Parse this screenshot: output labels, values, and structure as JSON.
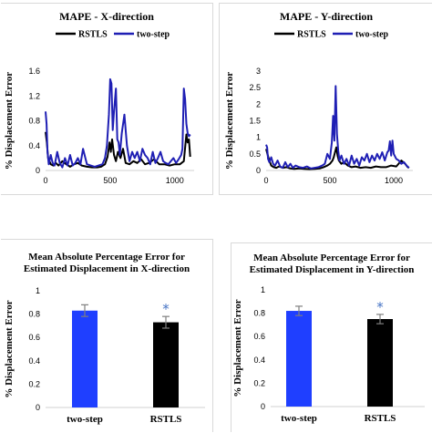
{
  "chart_data": [
    {
      "type": "line",
      "title": "MAPE - X-direction",
      "ylabel": "% Displacement Error",
      "xlabel": "",
      "xlim": [
        0,
        1150
      ],
      "ylim": [
        0,
        1.6
      ],
      "yticks": [
        "0",
        "0.4",
        "0.8",
        "1.2",
        "1.6"
      ],
      "xticks": [
        "0",
        "500",
        "1000"
      ],
      "legend_position": "top",
      "series": [
        {
          "name": "RSTLS",
          "color": "#000000",
          "x": [
            0,
            10,
            20,
            40,
            60,
            80,
            100,
            130,
            160,
            190,
            220,
            250,
            280,
            320,
            360,
            400,
            430,
            460,
            480,
            495,
            505,
            515,
            530,
            545,
            560,
            580,
            600,
            620,
            650,
            680,
            710,
            740,
            770,
            800,
            840,
            880,
            920,
            960,
            1000,
            1040,
            1070,
            1090,
            1100,
            1110,
            1120
          ],
          "y": [
            0.62,
            0.45,
            0.2,
            0.1,
            0.08,
            0.12,
            0.08,
            0.15,
            0.1,
            0.06,
            0.1,
            0.12,
            0.08,
            0.06,
            0.05,
            0.05,
            0.06,
            0.1,
            0.22,
            0.45,
            0.3,
            0.5,
            0.25,
            0.15,
            0.3,
            0.2,
            0.35,
            0.12,
            0.1,
            0.15,
            0.12,
            0.18,
            0.1,
            0.12,
            0.18,
            0.1,
            0.1,
            0.08,
            0.1,
            0.1,
            0.15,
            0.58,
            0.45,
            0.5,
            0.22
          ]
        },
        {
          "name": "two-step",
          "color": "#1f1fb4",
          "x": [
            0,
            8,
            15,
            25,
            40,
            55,
            70,
            90,
            110,
            130,
            150,
            170,
            190,
            210,
            230,
            250,
            270,
            290,
            320,
            350,
            380,
            410,
            440,
            460,
            475,
            490,
            500,
            510,
            520,
            530,
            545,
            555,
            565,
            575,
            590,
            610,
            630,
            650,
            670,
            690,
            710,
            730,
            750,
            770,
            790,
            810,
            830,
            850,
            870,
            890,
            910,
            930,
            950,
            970,
            990,
            1010,
            1030,
            1050,
            1060,
            1070,
            1080,
            1090,
            1100,
            1110,
            1120
          ],
          "y": [
            0.95,
            0.75,
            0.3,
            0.1,
            0.25,
            0.12,
            0.08,
            0.3,
            0.12,
            0.05,
            0.2,
            0.08,
            0.25,
            0.08,
            0.12,
            0.2,
            0.1,
            0.35,
            0.1,
            0.08,
            0.06,
            0.08,
            0.1,
            0.2,
            0.4,
            0.9,
            1.47,
            1.4,
            0.65,
            0.95,
            1.32,
            0.5,
            0.45,
            0.25,
            0.6,
            0.9,
            0.4,
            0.15,
            0.3,
            0.2,
            0.3,
            0.15,
            0.35,
            0.25,
            0.2,
            0.1,
            0.3,
            0.12,
            0.2,
            0.3,
            0.15,
            0.12,
            0.1,
            0.15,
            0.2,
            0.12,
            0.18,
            0.25,
            0.35,
            1.32,
            1.15,
            0.75,
            0.6,
            0.55,
            0.58
          ]
        }
      ]
    },
    {
      "type": "line",
      "title": "MAPE - Y-direction",
      "ylabel": "% Displacement Error",
      "xlabel": "",
      "xlim": [
        0,
        1150
      ],
      "ylim": [
        0,
        3
      ],
      "yticks": [
        "0",
        "0.5",
        "1",
        "1.5",
        "2",
        "2.5",
        "3"
      ],
      "xticks": [
        "0",
        "500",
        "1000"
      ],
      "legend_position": "top",
      "series": [
        {
          "name": "RSTLS",
          "color": "#000000",
          "x": [
            0,
            10,
            25,
            40,
            60,
            80,
            100,
            130,
            160,
            190,
            220,
            260,
            300,
            340,
            380,
            420,
            450,
            480,
            500,
            520,
            530,
            540,
            550,
            560,
            570,
            590,
            610,
            640,
            670,
            700,
            740,
            780,
            820,
            860,
            900,
            940,
            980,
            1020,
            1060,
            1090,
            1110,
            1120
          ],
          "y": [
            0.65,
            0.5,
            0.3,
            0.15,
            0.1,
            0.08,
            0.12,
            0.08,
            0.1,
            0.06,
            0.05,
            0.06,
            0.05,
            0.04,
            0.05,
            0.06,
            0.1,
            0.15,
            0.2,
            0.3,
            0.4,
            0.55,
            0.7,
            0.45,
            0.3,
            0.2,
            0.25,
            0.15,
            0.1,
            0.12,
            0.08,
            0.1,
            0.08,
            0.12,
            0.1,
            0.1,
            0.15,
            0.12,
            0.3,
            0.2,
            0.1,
            0.08
          ]
        },
        {
          "name": "two-step",
          "color": "#1f1fb4",
          "x": [
            0,
            8,
            15,
            25,
            40,
            55,
            70,
            90,
            110,
            130,
            150,
            170,
            190,
            210,
            230,
            260,
            290,
            320,
            350,
            380,
            410,
            440,
            460,
            480,
            500,
            515,
            525,
            535,
            545,
            555,
            565,
            575,
            590,
            610,
            630,
            650,
            670,
            690,
            710,
            730,
            750,
            770,
            790,
            810,
            830,
            850,
            870,
            890,
            910,
            930,
            950,
            960,
            970,
            980,
            990,
            1000,
            1020,
            1040,
            1060,
            1080,
            1100,
            1120
          ],
          "y": [
            0.78,
            0.7,
            0.35,
            0.25,
            0.4,
            0.2,
            0.15,
            0.3,
            0.12,
            0.08,
            0.25,
            0.1,
            0.2,
            0.08,
            0.15,
            0.1,
            0.08,
            0.12,
            0.06,
            0.08,
            0.1,
            0.15,
            0.2,
            0.5,
            0.35,
            0.85,
            1.65,
            0.9,
            2.55,
            1.1,
            0.6,
            0.3,
            0.45,
            0.2,
            0.35,
            0.15,
            0.45,
            0.2,
            0.35,
            0.15,
            0.4,
            0.3,
            0.5,
            0.25,
            0.45,
            0.3,
            0.5,
            0.35,
            0.55,
            0.3,
            0.55,
            0.6,
            0.88,
            0.45,
            0.9,
            0.5,
            0.35,
            0.3,
            0.2,
            0.25,
            0.15,
            0.08
          ]
        }
      ]
    },
    {
      "type": "bar",
      "title": "Mean Absolute Percentage Error for Estimated Displacement in X-direction",
      "title_lines": [
        "Mean Absolute Percentage Error for",
        "Estimated Displacement in X-direction"
      ],
      "ylabel": "% Displacement Error",
      "xlabel": "",
      "ylim": [
        0,
        1
      ],
      "yticks": [
        "0",
        "0.2",
        "0.4",
        "0.6",
        "0.8",
        "1"
      ],
      "categories": [
        "two-step",
        "RSTLS"
      ],
      "values": [
        0.83,
        0.73
      ],
      "errors": [
        0.05,
        0.05
      ],
      "colors": [
        "#1f3fff",
        "#000000"
      ],
      "annotations": [
        {
          "category": "RSTLS",
          "text": "*"
        }
      ]
    },
    {
      "type": "bar",
      "title": "Mean Absolute Percentage Error for Estimated Displacement in Y-direction",
      "title_lines": [
        "Mean Absolute Percentage Error for",
        "Estimated Displacement in Y-direction"
      ],
      "ylabel": "% Displacement Error",
      "xlabel": "",
      "ylim": [
        0,
        1
      ],
      "yticks": [
        "0",
        "0.2",
        "0.4",
        "0.6",
        "0.8",
        "1"
      ],
      "categories": [
        "two-step",
        "RSTLS"
      ],
      "values": [
        0.82,
        0.75
      ],
      "errors": [
        0.04,
        0.04
      ],
      "colors": [
        "#1f3fff",
        "#000000"
      ],
      "annotations": [
        {
          "category": "RSTLS",
          "text": "*"
        }
      ]
    }
  ]
}
